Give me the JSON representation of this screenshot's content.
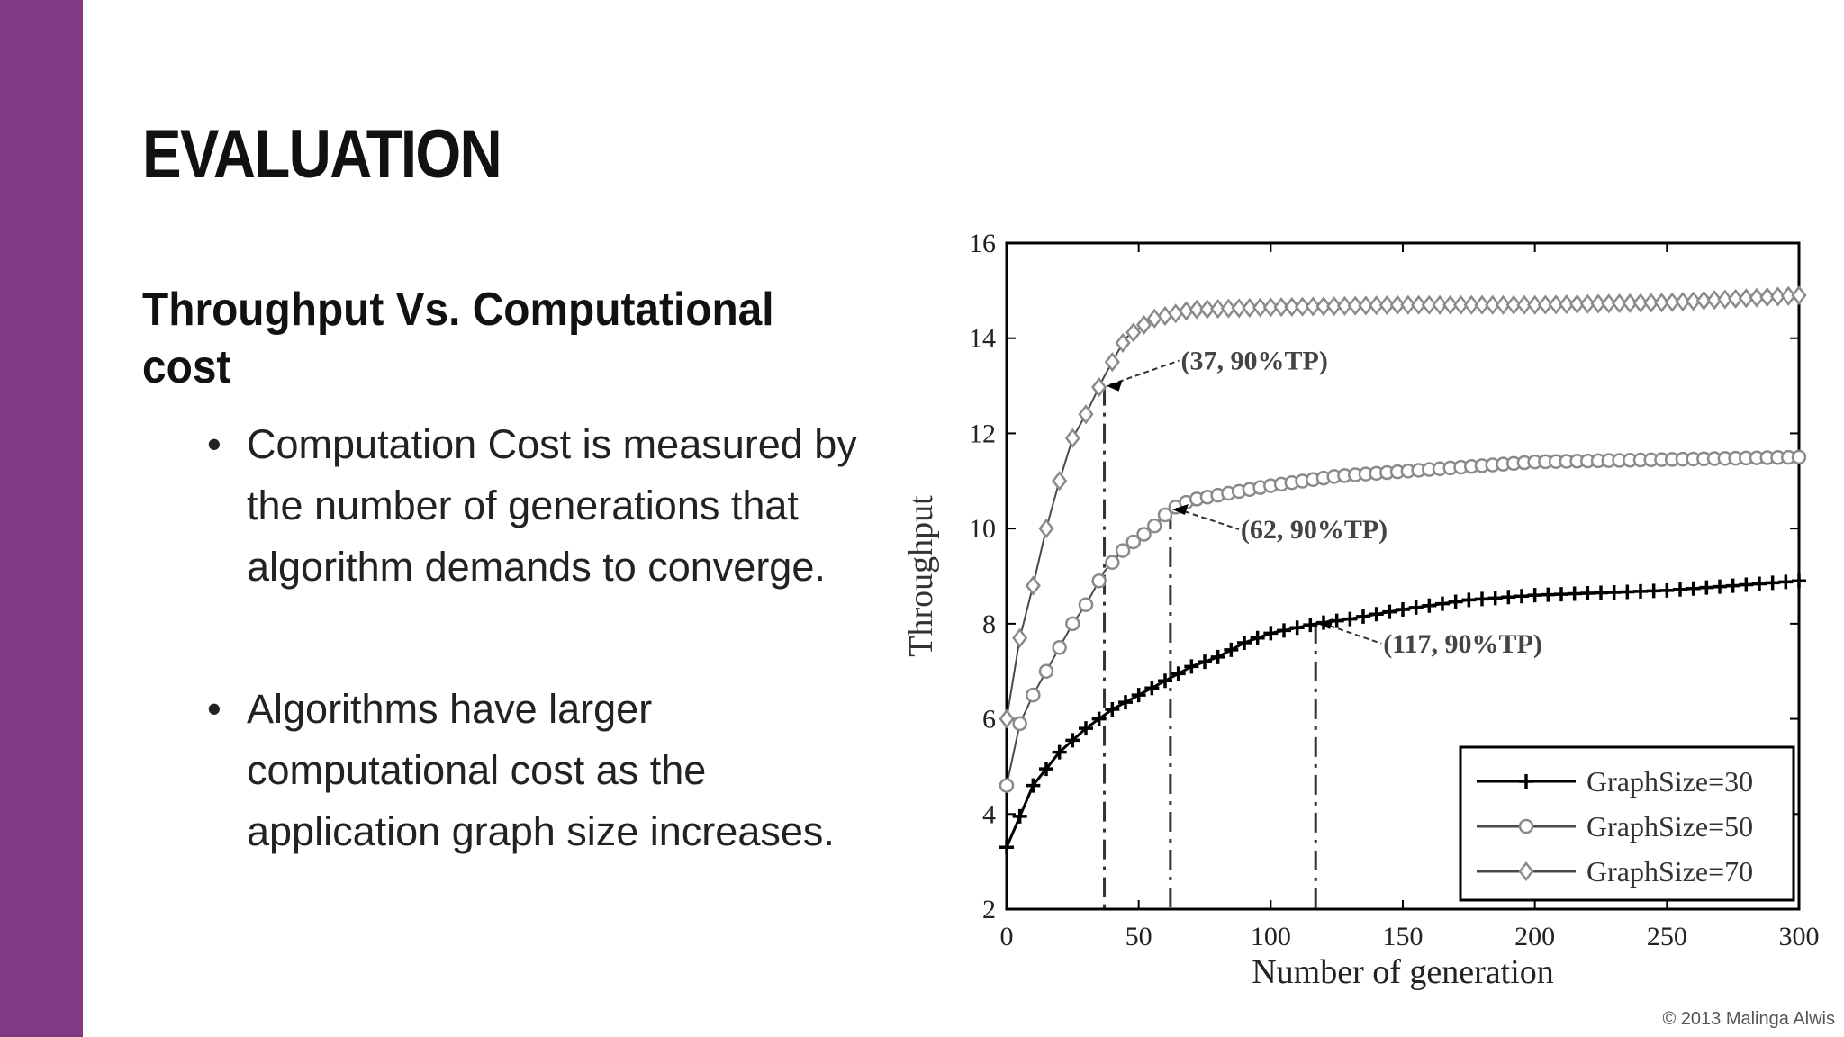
{
  "colors": {
    "accent": "#7e3a83",
    "series_line": "#4a4a4a",
    "marker_light": "#8a8a8a"
  },
  "slide": {
    "title": "EVALUATION",
    "subtitle": "Throughput Vs. Computational cost",
    "bullets": [
      "Computation Cost is measured by the number of generations that algorithm demands to converge.",
      "Algorithms have larger computational cost as the application graph size increases."
    ],
    "copyright": "© 2013 Malinga Alwis"
  },
  "chart_data": {
    "type": "line",
    "title": "",
    "xlabel": "Number of generation",
    "ylabel": "Throughput",
    "xlim": [
      0,
      300
    ],
    "ylim": [
      2,
      16
    ],
    "xticks": [
      "0",
      "50",
      "100",
      "150",
      "200",
      "250",
      "300"
    ],
    "yticks": [
      "2",
      "4",
      "6",
      "8",
      "10",
      "12",
      "14",
      "16"
    ],
    "grid": false,
    "legend_position": "bottom-right",
    "series": [
      {
        "name": "GraphSize=30",
        "marker": "plus",
        "x": [
          0,
          10,
          20,
          30,
          35,
          40,
          50,
          60,
          70,
          80,
          90,
          100,
          117,
          130,
          150,
          175,
          200,
          250,
          300
        ],
        "y": [
          3.3,
          4.6,
          5.3,
          5.8,
          6.0,
          6.2,
          6.5,
          6.8,
          7.1,
          7.3,
          7.6,
          7.8,
          8.0,
          8.1,
          8.3,
          8.5,
          8.6,
          8.7,
          8.9
        ]
      },
      {
        "name": "GraphSize=50",
        "marker": "circle",
        "x": [
          0,
          5,
          10,
          15,
          20,
          25,
          30,
          37,
          45,
          55,
          62,
          70,
          80,
          100,
          125,
          150,
          175,
          200,
          250,
          300
        ],
        "y": [
          4.6,
          5.9,
          6.5,
          7.0,
          7.5,
          8.0,
          8.4,
          9.1,
          9.6,
          10.0,
          10.4,
          10.6,
          10.7,
          10.9,
          11.1,
          11.2,
          11.3,
          11.4,
          11.45,
          11.5
        ]
      },
      {
        "name": "GraphSize=70",
        "marker": "diamond",
        "x": [
          0,
          5,
          10,
          15,
          20,
          25,
          30,
          37,
          45,
          55,
          70,
          100,
          150,
          200,
          250,
          300
        ],
        "y": [
          6.0,
          7.7,
          8.8,
          10.0,
          11.0,
          11.9,
          12.4,
          13.2,
          14.0,
          14.4,
          14.6,
          14.65,
          14.7,
          14.7,
          14.75,
          14.9
        ]
      }
    ],
    "annotations": [
      {
        "text": "(37, 90%TP)",
        "x": 37,
        "y": 13.0
      },
      {
        "text": "(62, 90%TP)",
        "x": 62,
        "y": 10.4
      },
      {
        "text": "(117, 90%TP)",
        "x": 117,
        "y": 8.0
      }
    ]
  }
}
